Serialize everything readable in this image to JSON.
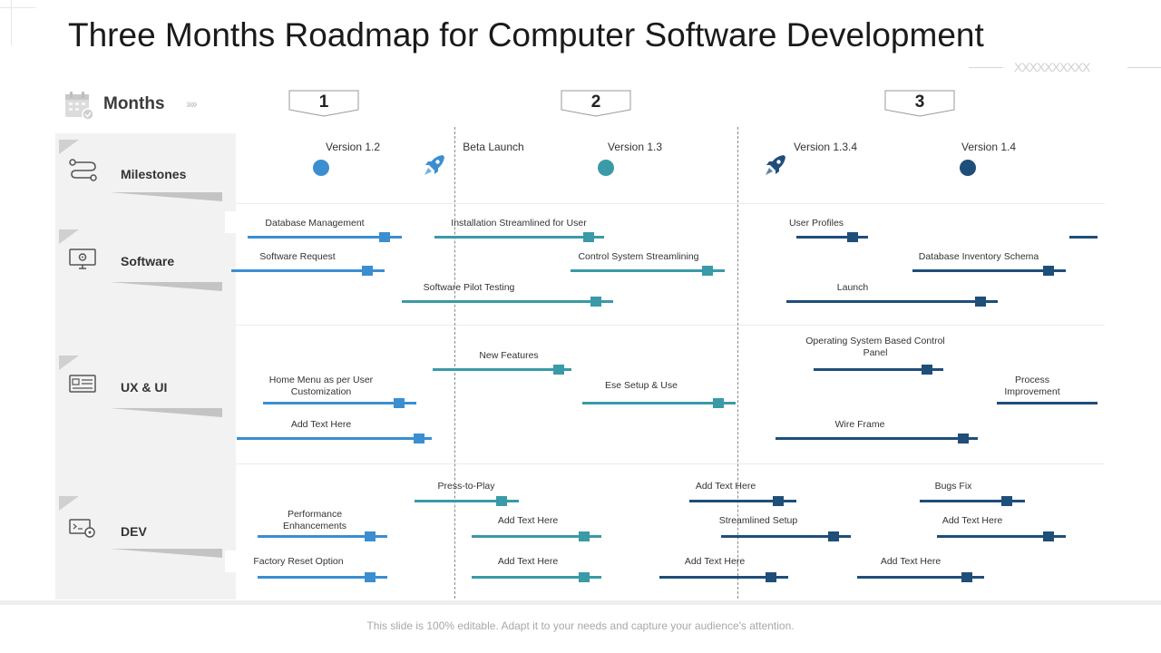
{
  "title": "Three Months Roadmap for Computer Software Development",
  "months_label": "Months",
  "months": [
    "1",
    "2",
    "3"
  ],
  "footer": "This slide is 100% editable. Adapt it to your needs and capture your audience's attention.",
  "categories": [
    "Milestones",
    "Software",
    "UX & UI",
    "DEV"
  ],
  "colors": {
    "light_blue": "#3b8ed0",
    "teal": "#3a9aa8",
    "navy": "#1f4e79"
  },
  "milestones": [
    {
      "label": "Version 1.2",
      "type": "dot",
      "color": "#3b8ed0"
    },
    {
      "label": "Beta Launch",
      "type": "rocket",
      "color": "#3b8ed0"
    },
    {
      "label": "Version 1.3",
      "type": "dot",
      "color": "#3a9aa8"
    },
    {
      "label": "Version 1.3.4",
      "type": "rocket",
      "color": "#1f4e79"
    },
    {
      "label": "Version 1.4",
      "type": "dot",
      "color": "#1f4e79"
    }
  ],
  "tasks": [
    "Database Management",
    "Installation Streamlined for User",
    "User Profiles",
    "Software Request",
    "Control System Streamlining",
    "Database Inventory Schema",
    "Software Pilot Testing",
    "Launch",
    "New Features",
    "Operating System Based Control Panel",
    "Home Menu as per User Customization",
    "Ese Setup & Use",
    "Process Improvement",
    "Add Text Here",
    "Wire Frame",
    "Press-to-Play",
    "Add Text Here",
    "Bugs Fix",
    "Performance Enhancements",
    "Add Text Here",
    "Streamlined Setup",
    "Add Text Here",
    "Factory Reset Option",
    "Add Text Here",
    "Add Text Here",
    "Add Text Here"
  ]
}
